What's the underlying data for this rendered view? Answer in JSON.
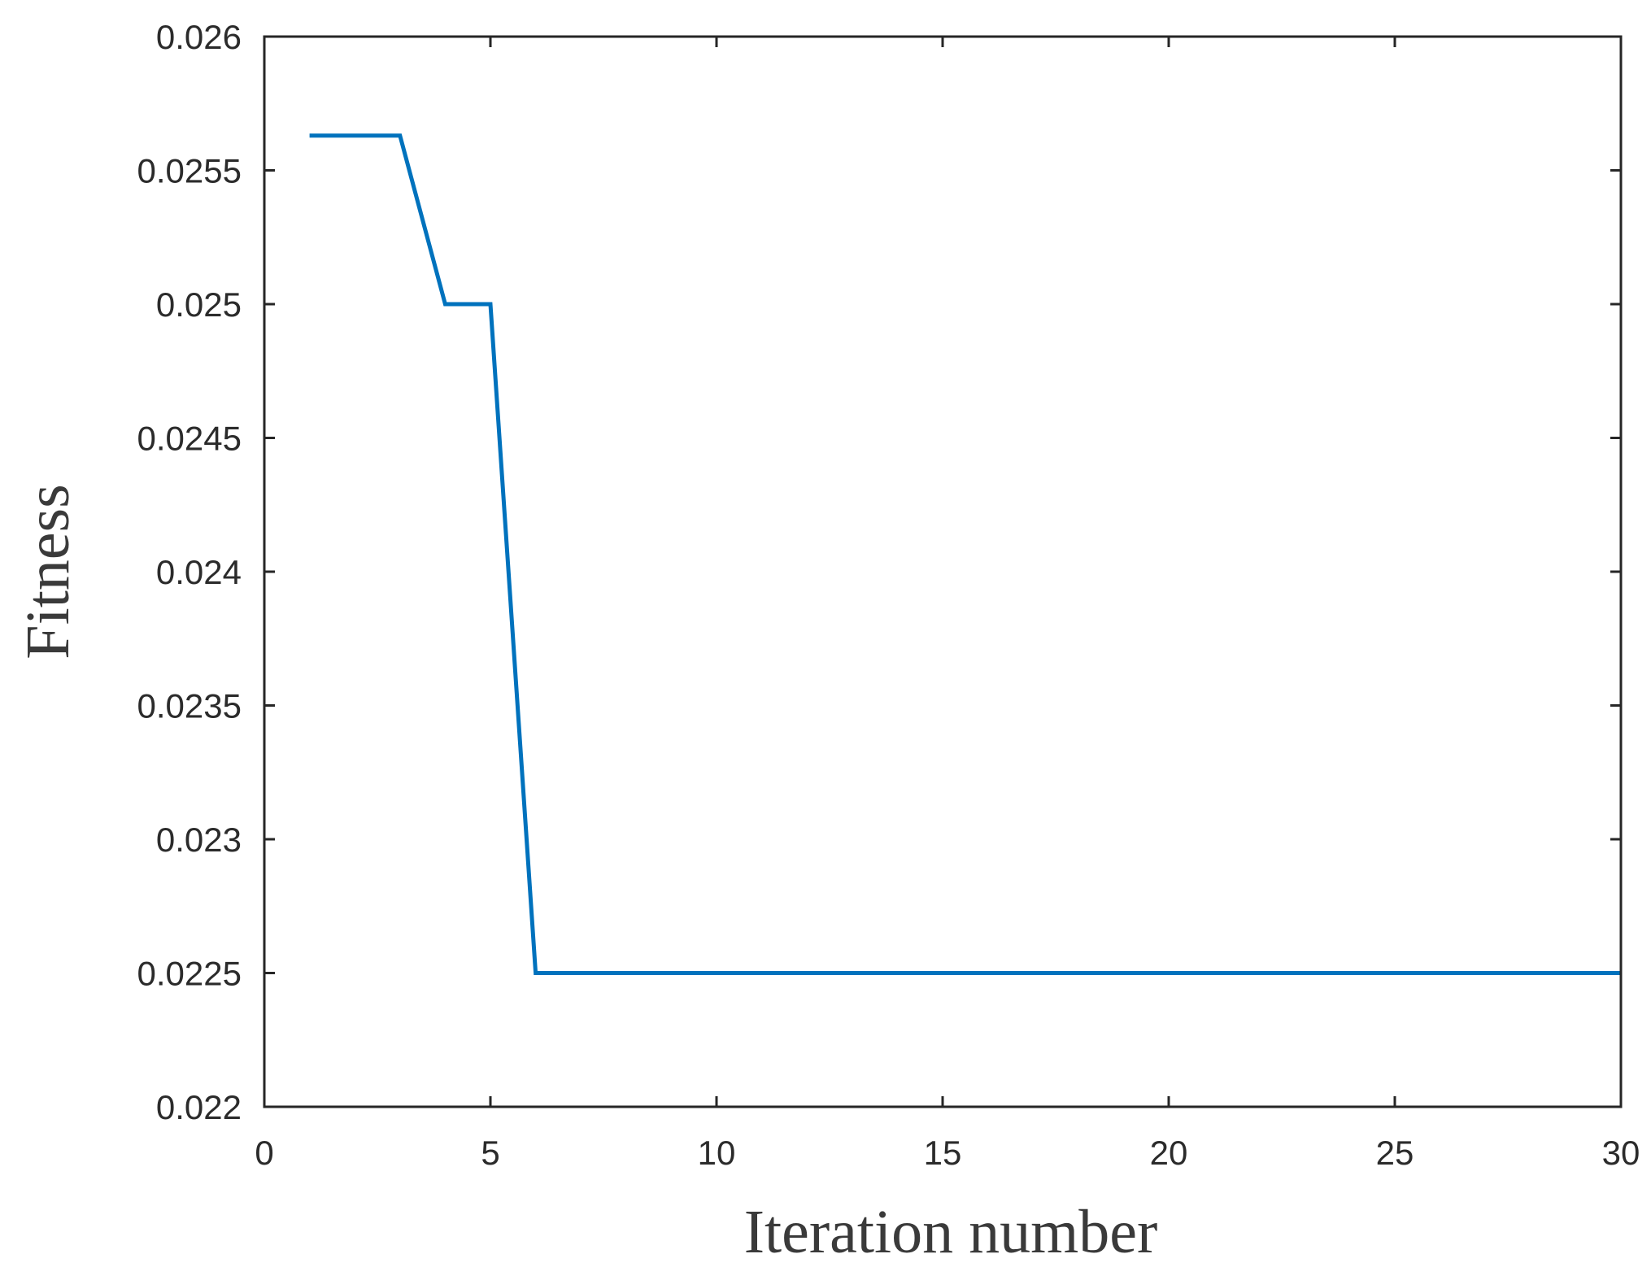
{
  "chart_data": {
    "type": "line",
    "xlabel": "Iteration number",
    "ylabel": "Fitness",
    "xlim": [
      0,
      30
    ],
    "ylim": [
      0.022,
      0.026
    ],
    "xticks": [
      0,
      5,
      10,
      15,
      20,
      25,
      30
    ],
    "xtick_labels": [
      "0",
      "5",
      "10",
      "15",
      "20",
      "25",
      "30"
    ],
    "yticks": [
      0.022,
      0.0225,
      0.023,
      0.0235,
      0.024,
      0.0245,
      0.025,
      0.0255,
      0.026
    ],
    "ytick_labels": [
      "0.022",
      "0.0225",
      "0.023",
      "0.0235",
      "0.024",
      "0.0245",
      "0.025",
      "0.0255",
      "0.026"
    ],
    "grid": false,
    "series": [
      {
        "color": "#0072bd",
        "x": [
          1,
          2,
          3,
          4,
          5,
          6,
          7,
          8,
          9,
          10,
          11,
          12,
          13,
          14,
          15,
          16,
          17,
          18,
          19,
          20,
          21,
          22,
          23,
          24,
          25,
          26,
          27,
          28,
          29,
          30
        ],
        "y": [
          0.02563,
          0.02563,
          0.02563,
          0.025,
          0.025,
          0.0225,
          0.0225,
          0.0225,
          0.0225,
          0.0225,
          0.0225,
          0.0225,
          0.0225,
          0.0225,
          0.0225,
          0.0225,
          0.0225,
          0.0225,
          0.0225,
          0.0225,
          0.0225,
          0.0225,
          0.0225,
          0.0225,
          0.0225,
          0.0225,
          0.0225,
          0.0225,
          0.0225,
          0.0225
        ]
      }
    ]
  }
}
